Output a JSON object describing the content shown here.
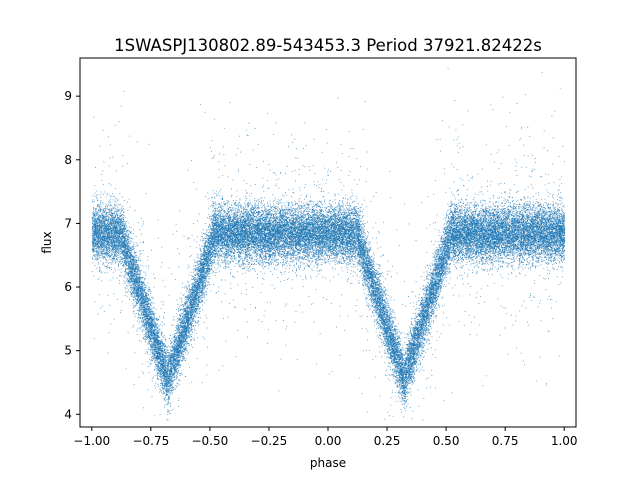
{
  "chart_data": {
    "type": "scatter",
    "title": "1SWASPJ130802.89-543453.3 Period 37921.82422s",
    "xlabel": "phase",
    "ylabel": "flux",
    "xlim": [
      -1.05,
      1.05
    ],
    "ylim": [
      3.8,
      9.6
    ],
    "xticks": [
      -1.0,
      -0.75,
      -0.5,
      -0.25,
      0.0,
      0.25,
      0.5,
      0.75,
      1.0
    ],
    "xtick_labels": [
      "−1.00",
      "−0.75",
      "−0.50",
      "−0.25",
      "0.00",
      "0.25",
      "0.50",
      "0.75",
      "1.00"
    ],
    "yticks": [
      4,
      5,
      6,
      7,
      8,
      9
    ],
    "ytick_labels": [
      "4",
      "5",
      "6",
      "7",
      "8",
      "9"
    ],
    "grid": false,
    "marker_color": "#1f77b4",
    "description_of_series": "phase-folded light curve, ~38000 points; baseline flux ~6.85; two eclipses",
    "baseline_flux": 6.85,
    "baseline_scatter": 0.22,
    "eclipses": [
      {
        "center_phase": -0.68,
        "min_flux": 4.55,
        "half_width": 0.2
      },
      {
        "center_phase": 0.32,
        "min_flux": 4.55,
        "half_width": 0.2
      }
    ],
    "phase_range": [
      -1.0,
      1.0
    ],
    "n_points": 38000
  }
}
